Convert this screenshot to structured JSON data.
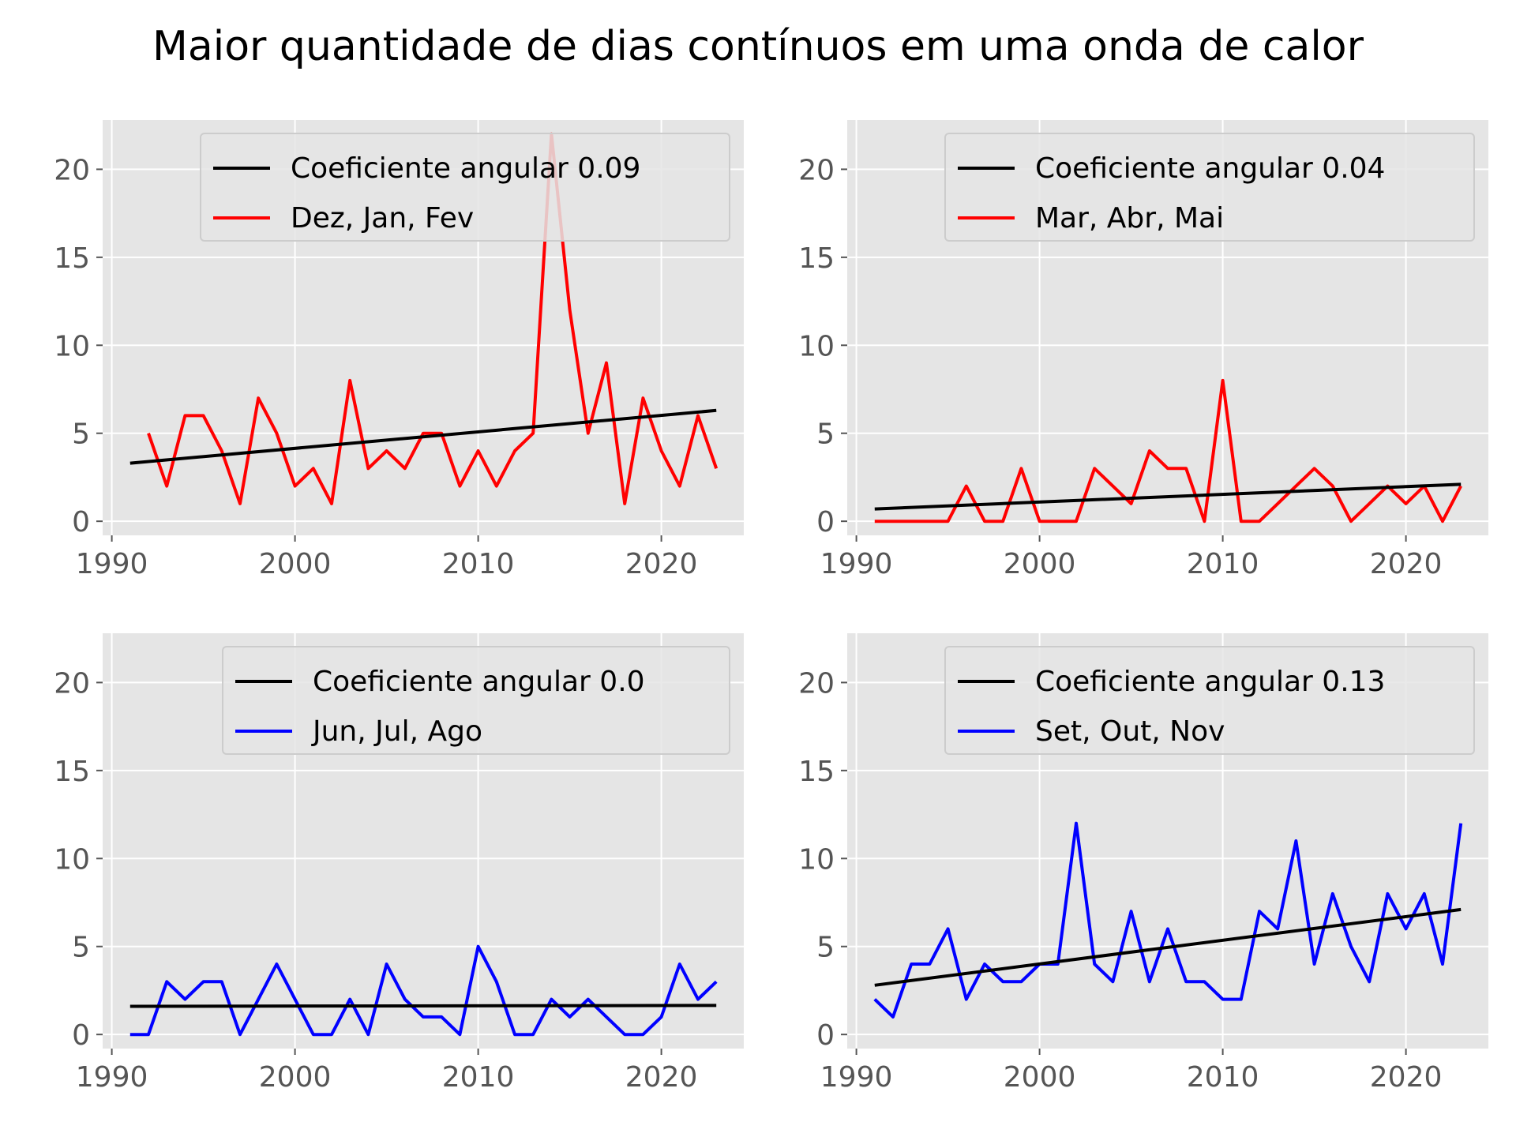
{
  "figure": {
    "title": "Maior quantidade de dias contínuos em uma onda de calor"
  },
  "colors": {
    "axes_bg": "#e5e5e5",
    "grid": "#ffffff",
    "tick_text": "#555555",
    "trend": "#000000",
    "warm": "#ff0000",
    "cool": "#0000ff",
    "legend_bg": "#e5e5e5",
    "legend_border": "#cccccc"
  },
  "chart_data": [
    {
      "type": "line",
      "xlim": [
        1989.5,
        2024.5
      ],
      "ylim": [
        -0.8,
        22.8
      ],
      "xticks": [
        1990,
        2000,
        2010,
        2020
      ],
      "yticks": [
        0,
        5,
        10,
        15,
        20
      ],
      "grid": true,
      "legend_position": "top-right",
      "series": [
        {
          "name": "Coeficiente angular 0.09",
          "color": "#000000",
          "x": [
            1991,
            2023
          ],
          "y": [
            3.3,
            6.3
          ]
        },
        {
          "name": "Dez, Jan, Fev",
          "color": "#ff0000",
          "x": [
            1992,
            1993,
            1994,
            1995,
            1996,
            1997,
            1998,
            1999,
            2000,
            2001,
            2002,
            2003,
            2004,
            2005,
            2006,
            2007,
            2008,
            2009,
            2010,
            2011,
            2012,
            2013,
            2014,
            2015,
            2016,
            2017,
            2018,
            2019,
            2020,
            2021,
            2022,
            2023
          ],
          "y": [
            5,
            2,
            6,
            6,
            4,
            1,
            7,
            5,
            2,
            3,
            1,
            8,
            3,
            4,
            3,
            5,
            5,
            2,
            4,
            2,
            4,
            5,
            22,
            12,
            5,
            9,
            1,
            7,
            4,
            2,
            6,
            3
          ]
        }
      ]
    },
    {
      "type": "line",
      "xlim": [
        1989.5,
        2024.5
      ],
      "ylim": [
        -0.8,
        22.8
      ],
      "xticks": [
        1990,
        2000,
        2010,
        2020
      ],
      "yticks": [
        0,
        5,
        10,
        15,
        20
      ],
      "grid": true,
      "legend_position": "top-right",
      "series": [
        {
          "name": "Coeficiente angular 0.04",
          "color": "#000000",
          "x": [
            1991,
            2023
          ],
          "y": [
            0.7,
            2.1
          ]
        },
        {
          "name": "Mar, Abr, Mai",
          "color": "#ff0000",
          "x": [
            1991,
            1992,
            1993,
            1994,
            1995,
            1996,
            1997,
            1998,
            1999,
            2000,
            2001,
            2002,
            2003,
            2004,
            2005,
            2006,
            2007,
            2008,
            2009,
            2010,
            2011,
            2012,
            2013,
            2014,
            2015,
            2016,
            2017,
            2018,
            2019,
            2020,
            2021,
            2022,
            2023
          ],
          "y": [
            0,
            0,
            0,
            0,
            0,
            2,
            0,
            0,
            3,
            0,
            0,
            0,
            3,
            2,
            1,
            4,
            3,
            3,
            0,
            8,
            0,
            0,
            1,
            2,
            3,
            2,
            0,
            1,
            2,
            1,
            2,
            0,
            2
          ]
        }
      ]
    },
    {
      "type": "line",
      "xlim": [
        1989.5,
        2024.5
      ],
      "ylim": [
        -0.8,
        22.8
      ],
      "xticks": [
        1990,
        2000,
        2010,
        2020
      ],
      "yticks": [
        0,
        5,
        10,
        15,
        20
      ],
      "grid": true,
      "legend_position": "top-right",
      "series": [
        {
          "name": "Coeficiente angular 0.0",
          "color": "#000000",
          "x": [
            1991,
            2023
          ],
          "y": [
            1.6,
            1.65
          ]
        },
        {
          "name": "Jun, Jul, Ago",
          "color": "#0000ff",
          "x": [
            1991,
            1992,
            1993,
            1994,
            1995,
            1996,
            1997,
            1998,
            1999,
            2000,
            2001,
            2002,
            2003,
            2004,
            2005,
            2006,
            2007,
            2008,
            2009,
            2010,
            2011,
            2012,
            2013,
            2014,
            2015,
            2016,
            2017,
            2018,
            2019,
            2020,
            2021,
            2022,
            2023
          ],
          "y": [
            0,
            0,
            3,
            2,
            3,
            3,
            0,
            2,
            4,
            2,
            0,
            0,
            2,
            0,
            4,
            2,
            1,
            1,
            0,
            5,
            3,
            0,
            0,
            2,
            1,
            2,
            1,
            0,
            0,
            1,
            4,
            2,
            3
          ]
        }
      ]
    },
    {
      "type": "line",
      "xlim": [
        1989.5,
        2024.5
      ],
      "ylim": [
        -0.8,
        22.8
      ],
      "xticks": [
        1990,
        2000,
        2010,
        2020
      ],
      "yticks": [
        0,
        5,
        10,
        15,
        20
      ],
      "grid": true,
      "legend_position": "top-right",
      "series": [
        {
          "name": "Coeficiente angular 0.13",
          "color": "#000000",
          "x": [
            1991,
            2023
          ],
          "y": [
            2.8,
            7.1
          ]
        },
        {
          "name": "Set, Out, Nov",
          "color": "#0000ff",
          "x": [
            1991,
            1992,
            1993,
            1994,
            1995,
            1996,
            1997,
            1998,
            1999,
            2000,
            2001,
            2002,
            2003,
            2004,
            2005,
            2006,
            2007,
            2008,
            2009,
            2010,
            2011,
            2012,
            2013,
            2014,
            2015,
            2016,
            2017,
            2018,
            2019,
            2020,
            2021,
            2022,
            2023
          ],
          "y": [
            2,
            1,
            4,
            4,
            6,
            2,
            4,
            3,
            3,
            4,
            4,
            12,
            4,
            3,
            7,
            3,
            6,
            3,
            3,
            2,
            2,
            7,
            6,
            11,
            4,
            8,
            5,
            3,
            8,
            6,
            8,
            4,
            12
          ]
        }
      ]
    }
  ]
}
